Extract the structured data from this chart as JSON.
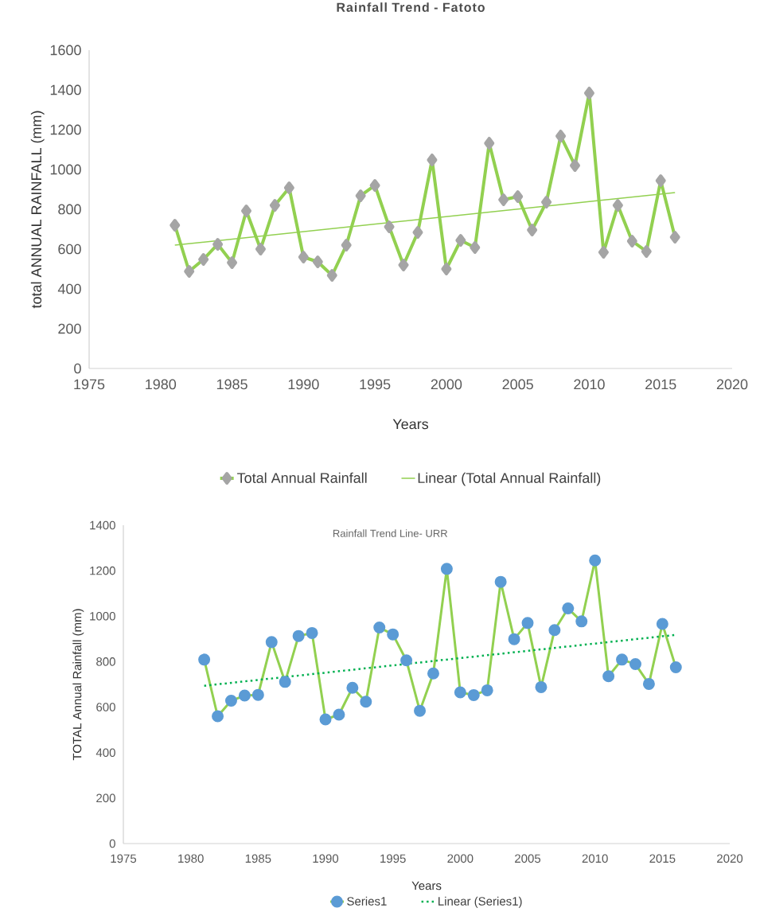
{
  "chart_data": [
    {
      "type": "line",
      "title": "Rainfall Trend - Fatoto",
      "xlabel": "Years",
      "ylabel": "total ANNUAL RAINFALL (mm)",
      "xlim": [
        1975,
        2020
      ],
      "xticks": [
        1975,
        1980,
        1985,
        1990,
        1995,
        2000,
        2005,
        2010,
        2015,
        2020
      ],
      "ylim": [
        0,
        1600
      ],
      "yticks": [
        0,
        200,
        400,
        600,
        800,
        1000,
        1200,
        1400,
        1600
      ],
      "legend": "bottom",
      "series": [
        {
          "name": "Total Annual Rainfall",
          "color": "#92d050",
          "marker": "diamond",
          "x": [
            1981,
            1982,
            1983,
            1984,
            1985,
            1986,
            1987,
            1988,
            1989,
            1990,
            1991,
            1992,
            1993,
            1994,
            1995,
            1996,
            1997,
            1998,
            1999,
            2000,
            2001,
            2002,
            2003,
            2004,
            2005,
            2006,
            2007,
            2008,
            2009,
            2010,
            2011,
            2012,
            2013,
            2014,
            2015,
            2016
          ],
          "values": [
            720,
            488,
            548,
            624,
            532,
            792,
            600,
            820,
            908,
            560,
            536,
            468,
            620,
            868,
            920,
            712,
            520,
            684,
            1048,
            500,
            644,
            608,
            1132,
            848,
            864,
            696,
            836,
            1168,
            1020,
            1384,
            584,
            820,
            640,
            588,
            944,
            660
          ]
        },
        {
          "name": "Linear (Total Annual Rainfall)",
          "color": "#92d050",
          "marker": "none",
          "line_style": "solid",
          "x": [
            1981,
            2016
          ],
          "values": [
            620,
            884
          ]
        }
      ]
    },
    {
      "type": "line",
      "title": "Rainfall Trend Line- URR",
      "xlabel": "Years",
      "ylabel": "TOTAL Annual Rainfall (mm)",
      "xlim": [
        1975,
        2020
      ],
      "xticks": [
        1975,
        1980,
        1985,
        1990,
        1995,
        2000,
        2005,
        2010,
        2015,
        2020
      ],
      "ylim": [
        0,
        1400
      ],
      "yticks": [
        0,
        200,
        400,
        600,
        800,
        1000,
        1200,
        1400
      ],
      "legend": "bottom",
      "series": [
        {
          "name": "Series1",
          "color": "#92d050",
          "marker": "circle",
          "x": [
            1981,
            1982,
            1983,
            1984,
            1985,
            1986,
            1987,
            1988,
            1989,
            1990,
            1991,
            1992,
            1993,
            1994,
            1995,
            1996,
            1997,
            1998,
            1999,
            2000,
            2001,
            2002,
            2003,
            2004,
            2005,
            2006,
            2007,
            2008,
            2009,
            2010,
            2011,
            2012,
            2013,
            2014,
            2015,
            2016
          ],
          "values": [
            809,
            560,
            628,
            651,
            654,
            886,
            711,
            913,
            926,
            546,
            567,
            685,
            624,
            950,
            920,
            806,
            584,
            748,
            1208,
            665,
            653,
            674,
            1151,
            899,
            970,
            688,
            939,
            1034,
            977,
            1245,
            736,
            809,
            789,
            702,
            966,
            775
          ]
        },
        {
          "name": "Linear (Series1)",
          "color": "#00b050",
          "marker": "none",
          "line_style": "dotted",
          "x": [
            1981,
            2016
          ],
          "values": [
            694,
            918
          ]
        }
      ]
    }
  ]
}
